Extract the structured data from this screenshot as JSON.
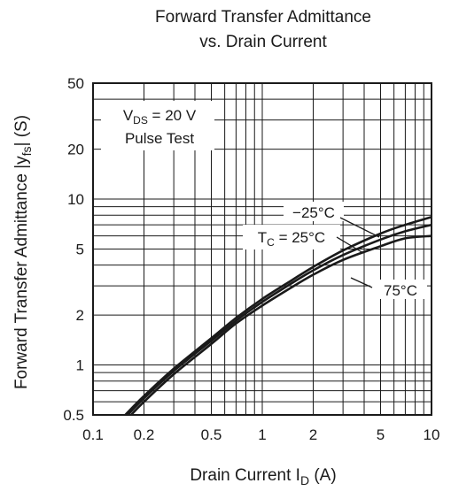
{
  "chart_data": {
    "type": "line",
    "title": "Forward Transfer Admittance",
    "subtitle": "vs. Drain Current",
    "xlabel": {
      "main": "Drain Current  I",
      "sub": "D",
      "unit": "  (A)"
    },
    "ylabel": {
      "main": "Forward Transfer Admittance  |y",
      "sub": "fs",
      "unit": "|  (S)"
    },
    "x_scale": "log",
    "y_scale": "log",
    "xlim": [
      0.1,
      10
    ],
    "ylim": [
      0.5,
      50
    ],
    "grid": true,
    "x_ticks": [
      {
        "v": 0.1,
        "label": "0.1"
      },
      {
        "v": 0.2,
        "label": "0.2"
      },
      {
        "v": 0.5,
        "label": "0.5"
      },
      {
        "v": 1,
        "label": "1"
      },
      {
        "v": 2,
        "label": "2"
      },
      {
        "v": 5,
        "label": "5"
      },
      {
        "v": 10,
        "label": "10"
      }
    ],
    "y_ticks": [
      {
        "v": 0.5,
        "label": "0.5"
      },
      {
        "v": 1,
        "label": "1"
      },
      {
        "v": 2,
        "label": "2"
      },
      {
        "v": 5,
        "label": "5"
      },
      {
        "v": 10,
        "label": "10"
      },
      {
        "v": 20,
        "label": "20"
      },
      {
        "v": 50,
        "label": "50"
      }
    ],
    "conditions": {
      "line1_main": "V",
      "line1_sub": "DS",
      "line1_rest": " = 20 V",
      "line2": "Pulse Test"
    },
    "series": [
      {
        "name": "−25°C",
        "x": [
          0.155,
          0.2,
          0.3,
          0.5,
          0.7,
          1,
          1.5,
          2,
          3,
          5,
          7,
          10
        ],
        "y": [
          0.5,
          0.65,
          0.95,
          1.45,
          1.92,
          2.5,
          3.25,
          3.9,
          4.9,
          6.2,
          7.0,
          7.8
        ]
      },
      {
        "name": "T",
        "name_sub": "C",
        "name_rest": " = 25°C",
        "x": [
          0.16,
          0.2,
          0.3,
          0.5,
          0.7,
          1,
          1.5,
          2,
          3,
          5,
          7,
          10
        ],
        "y": [
          0.5,
          0.63,
          0.92,
          1.4,
          1.85,
          2.4,
          3.12,
          3.72,
          4.6,
          5.7,
          6.4,
          7.0
        ]
      },
      {
        "name": "75°C",
        "x": [
          0.168,
          0.2,
          0.3,
          0.5,
          0.7,
          1,
          1.5,
          2,
          3,
          5,
          7,
          10
        ],
        "y": [
          0.5,
          0.6,
          0.88,
          1.34,
          1.78,
          2.28,
          2.95,
          3.5,
          4.3,
          5.2,
          5.8,
          6.0
        ]
      }
    ]
  }
}
